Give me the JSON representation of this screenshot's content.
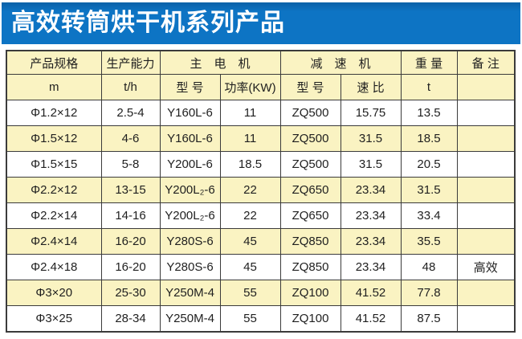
{
  "banner": {
    "title": "高效转筒烘干机系列产品"
  },
  "colors": {
    "banner_bg": "#0d74c4",
    "banner_text": "#ffffff",
    "header_bg": "#faf3c2",
    "row_alt_bg": "#faf3c2",
    "border": "#3b3b3b",
    "text": "#1f1f1f"
  },
  "table": {
    "group_headers": [
      {
        "label": "产品规格"
      },
      {
        "label": "生产能力"
      },
      {
        "label": "主　电　机"
      },
      {
        "label": "减　速　机"
      },
      {
        "label": "重 量"
      },
      {
        "label": "备 注"
      }
    ],
    "sub_headers": [
      "m",
      "t/h",
      "型 号",
      "功率(KW)",
      "型 号",
      "速 比",
      "t",
      ""
    ],
    "rows": [
      [
        "Φ1.2×12",
        "2.5-4",
        "Y160L-6",
        "11",
        "ZQ500",
        "15.75",
        "13.5",
        ""
      ],
      [
        "Φ1.5×12",
        "4-6",
        "Y160L-6",
        "11",
        "ZQ500",
        "31.5",
        "18.5",
        ""
      ],
      [
        "Φ1.5×15",
        "5-8",
        "Y200L-6",
        "18.5",
        "ZQ500",
        "31.5",
        "20.5",
        ""
      ],
      [
        "Φ2.2×12",
        "13-15",
        "Y200L₂-6",
        "22",
        "ZQ650",
        "23.34",
        "31.5",
        ""
      ],
      [
        "Φ2.2×14",
        "14-16",
        "Y200L₂-6",
        "22",
        "ZQ650",
        "23.34",
        "33.4",
        ""
      ],
      [
        "Φ2.4×14",
        "16-20",
        "Y280S-6",
        "45",
        "ZQ850",
        "23.34",
        "35.5",
        ""
      ],
      [
        "Φ2.4×18",
        "16-20",
        "Y280S-6",
        "45",
        "ZQ850",
        "23.34",
        "48",
        "高效"
      ],
      [
        "Φ3×20",
        "25-30",
        "Y250M-4",
        "55",
        "ZQ100",
        "41.52",
        "77.8",
        ""
      ],
      [
        "Φ3×25",
        "28-34",
        "Y250M-4",
        "55",
        "ZQ100",
        "41.52",
        "87.5",
        ""
      ]
    ]
  }
}
